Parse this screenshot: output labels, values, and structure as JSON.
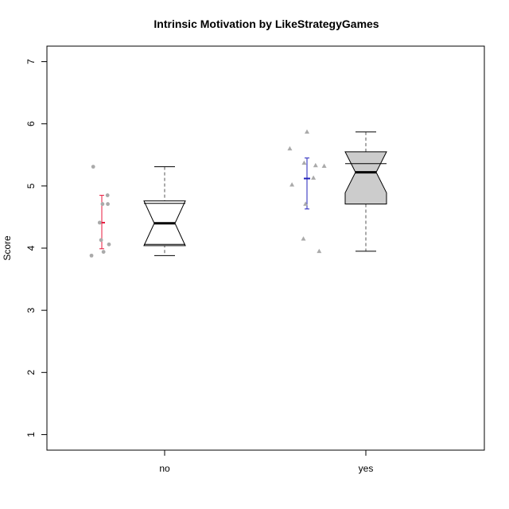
{
  "chart_data": {
    "type": "box",
    "title": "Intrinsic Motivation by LikeStrategyGames",
    "xlabel": "",
    "ylabel": "Score",
    "ylim": [
      0.75,
      7.25
    ],
    "yticks": [
      1,
      2,
      3,
      4,
      5,
      6,
      7
    ],
    "categories": [
      "no",
      "yes"
    ],
    "grid": false,
    "legend": "none",
    "groups": [
      {
        "category": "no",
        "box_fill": "#ffffff",
        "mean_color": "#e8193c",
        "point_marker": "circle",
        "box": {
          "whisker_low": 3.88,
          "q1": 4.06,
          "median": 4.4,
          "q3": 4.72,
          "whisker_high": 5.31,
          "notch_low": 4.04,
          "notch_high": 4.76
        },
        "mean": 4.41,
        "ci": [
          3.99,
          4.85
        ],
        "points": [
          {
            "jitter": -0.6,
            "value": 5.31
          },
          {
            "jitter": 0.4,
            "value": 4.85
          },
          {
            "jitter": 0.05,
            "value": 4.71
          },
          {
            "jitter": 0.42,
            "value": 4.71
          },
          {
            "jitter": -0.15,
            "value": 4.41
          },
          {
            "jitter": -0.05,
            "value": 4.13
          },
          {
            "jitter": 0.5,
            "value": 4.06
          },
          {
            "jitter": 0.12,
            "value": 3.94
          },
          {
            "jitter": -0.72,
            "value": 3.88
          }
        ]
      },
      {
        "category": "yes",
        "box_fill": "#cccccc",
        "mean_color": "#2222bb",
        "point_marker": "triangle",
        "box": {
          "whisker_low": 3.95,
          "q1": 4.71,
          "median": 5.22,
          "q3": 5.36,
          "whisker_high": 5.87,
          "notch_low": 4.89,
          "notch_high": 5.55
        },
        "mean": 5.12,
        "ci": [
          4.63,
          5.45
        ],
        "points": [
          {
            "jitter": 0.0,
            "value": 5.87
          },
          {
            "jitter": -1.2,
            "value": 5.6
          },
          {
            "jitter": -0.2,
            "value": 5.37
          },
          {
            "jitter": 0.6,
            "value": 5.33
          },
          {
            "jitter": 1.2,
            "value": 5.32
          },
          {
            "jitter": 0.45,
            "value": 5.13
          },
          {
            "jitter": -1.05,
            "value": 5.02
          },
          {
            "jitter": -0.1,
            "value": 4.71
          },
          {
            "jitter": -0.25,
            "value": 4.15
          },
          {
            "jitter": 0.85,
            "value": 3.95
          }
        ]
      }
    ]
  }
}
